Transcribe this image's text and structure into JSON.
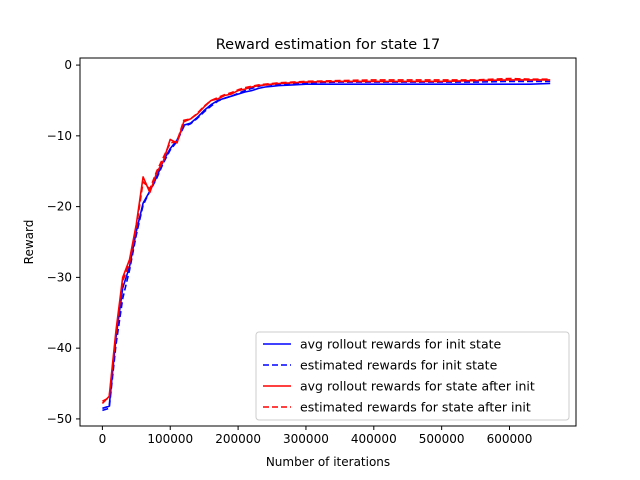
{
  "chart_data": {
    "type": "line",
    "title": "Reward estimation for state 17",
    "xlabel": "Number of iterations",
    "ylabel": "Reward",
    "xlim": [
      -33000,
      698000
    ],
    "ylim": [
      -51,
      1
    ],
    "xticks": [
      0,
      100000,
      200000,
      300000,
      400000,
      500000,
      600000
    ],
    "xtick_labels": [
      "0",
      "100000",
      "200000",
      "300000",
      "400000",
      "500000",
      "600000"
    ],
    "yticks": [
      0,
      -10,
      -20,
      -30,
      -40,
      -50
    ],
    "ytick_labels": [
      "0",
      "−10",
      "−20",
      "−30",
      "−40",
      "−50"
    ],
    "grid": false,
    "legend_position": "lower-right",
    "x": [
      0,
      10000,
      20000,
      30000,
      40000,
      50000,
      60000,
      70000,
      80000,
      90000,
      100000,
      110000,
      120000,
      130000,
      140000,
      150000,
      160000,
      170000,
      180000,
      190000,
      200000,
      210000,
      220000,
      230000,
      240000,
      250000,
      260000,
      280000,
      300000,
      350000,
      400000,
      450000,
      500000,
      550000,
      600000,
      630000,
      660000
    ],
    "series": [
      {
        "name": "avg rollout rewards for init state",
        "color": "#0000ff",
        "dash": "solid",
        "values": [
          -48.5,
          -48.2,
          -38.5,
          -31.5,
          -28.5,
          -23.5,
          -19.5,
          -17.8,
          -15.8,
          -13.5,
          -11.8,
          -10.6,
          -8.5,
          -8.2,
          -7.4,
          -6.4,
          -5.6,
          -5.0,
          -4.7,
          -4.4,
          -4.1,
          -3.8,
          -3.6,
          -3.3,
          -3.1,
          -3.0,
          -2.9,
          -2.8,
          -2.7,
          -2.7,
          -2.7,
          -2.7,
          -2.7,
          -2.7,
          -2.7,
          -2.7,
          -2.6
        ]
      },
      {
        "name": "estimated rewards for init state",
        "color": "#0000ff",
        "dash": "dashed",
        "values": [
          -48.8,
          -48.5,
          -39.5,
          -33.0,
          -29.0,
          -24.0,
          -19.8,
          -17.8,
          -16.0,
          -13.8,
          -12.0,
          -10.8,
          -8.7,
          -8.3,
          -7.5,
          -6.6,
          -5.8,
          -5.1,
          -4.7,
          -4.4,
          -4.0,
          -3.6,
          -3.3,
          -3.0,
          -2.8,
          -2.8,
          -2.7,
          -2.6,
          -2.5,
          -2.4,
          -2.4,
          -2.4,
          -2.4,
          -2.4,
          -2.3,
          -2.3,
          -2.3
        ]
      },
      {
        "name": "avg rollout rewards for state after init",
        "color": "#ff0000",
        "dash": "solid",
        "values": [
          -47.8,
          -46.8,
          -37.5,
          -30.0,
          -27.5,
          -22.5,
          -15.8,
          -18.0,
          -15.2,
          -13.5,
          -10.5,
          -11.0,
          -8.0,
          -7.6,
          -6.9,
          -5.9,
          -5.0,
          -4.8,
          -4.3,
          -4.1,
          -3.6,
          -3.4,
          -3.1,
          -2.9,
          -2.8,
          -2.7,
          -2.6,
          -2.5,
          -2.4,
          -2.3,
          -2.3,
          -2.3,
          -2.3,
          -2.2,
          -2.1,
          -2.1,
          -2.1
        ]
      },
      {
        "name": "estimated rewards for state after init",
        "color": "#ff0000",
        "dash": "dashed",
        "values": [
          -47.5,
          -47.0,
          -38.0,
          -30.5,
          -28.0,
          -23.0,
          -16.5,
          -17.5,
          -15.0,
          -13.0,
          -11.0,
          -10.8,
          -7.8,
          -7.6,
          -6.8,
          -5.8,
          -5.0,
          -4.6,
          -4.2,
          -3.9,
          -3.5,
          -3.2,
          -3.0,
          -2.8,
          -2.7,
          -2.6,
          -2.5,
          -2.4,
          -2.3,
          -2.2,
          -2.1,
          -2.1,
          -2.1,
          -2.1,
          -1.9,
          -2.0,
          -2.0
        ]
      }
    ]
  }
}
